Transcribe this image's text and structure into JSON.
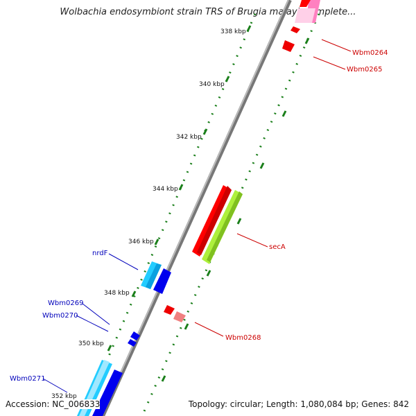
{
  "title": "Wolbachia endosymbiont strain TRS of Brugia malayi, complete...",
  "accession": "Accession: NC_006833",
  "summary": "Topology: circular; Length: 1,080,084 bp; Genes: 842",
  "colors": {
    "backbone": "#777777",
    "tick": "#1a7f1a",
    "label_red": "#cc0000",
    "label_blue": "#0000bb"
  },
  "kbp_labels": [
    "338 kbp",
    "340 kbp",
    "342 kbp",
    "344 kbp",
    "346 kbp",
    "348 kbp",
    "350 kbp",
    "352 kbp"
  ],
  "genes": [
    {
      "label": "Wbm0264",
      "color": "#ff0000",
      "strand": "reverse"
    },
    {
      "label": "Wbm0265",
      "color": "#ff0000",
      "strand": "reverse"
    },
    {
      "label": "secA",
      "color": "#ff0000",
      "strand": "reverse"
    },
    {
      "label": "Wbm0268",
      "color": "#ff0000",
      "strand": "reverse"
    },
    {
      "label": "nrdF",
      "color": "#00bfff",
      "strand": "forward"
    },
    {
      "label": "Wbm0269",
      "color": "#0000ee",
      "strand": "forward"
    },
    {
      "label": "Wbm0270",
      "color": "#0000ee",
      "strand": "forward"
    },
    {
      "label": "Wbm0271",
      "color": "#00bfff",
      "strand": "forward"
    }
  ]
}
